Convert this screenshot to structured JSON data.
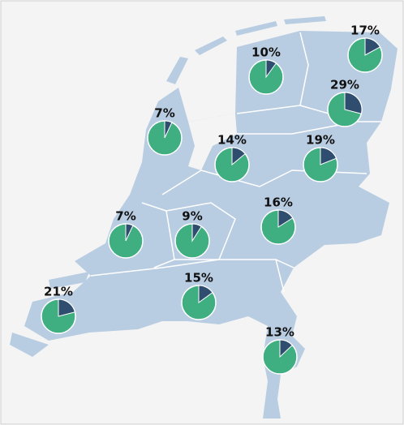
{
  "chart_data": {
    "type": "pie-map",
    "values": [
      10,
      17,
      29,
      7,
      14,
      19,
      16,
      7,
      9,
      21,
      15,
      13
    ],
    "value_labels": [
      "10%",
      "17%",
      "29%",
      "7%",
      "14%",
      "19%",
      "16%",
      "7%",
      "9%",
      "21%",
      "15%",
      "13%"
    ],
    "color": "#2f4d6e",
    "rest_color": "#3fae80"
  }
}
